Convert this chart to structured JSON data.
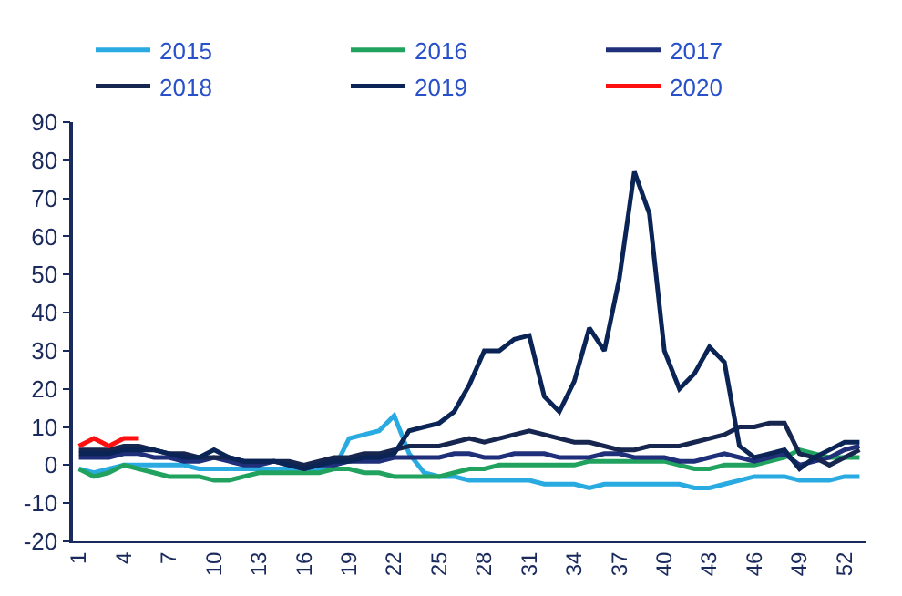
{
  "chart_data": {
    "type": "line",
    "x": [
      1,
      2,
      3,
      4,
      5,
      6,
      7,
      8,
      9,
      10,
      11,
      12,
      13,
      14,
      15,
      16,
      17,
      18,
      19,
      20,
      21,
      22,
      23,
      24,
      25,
      26,
      27,
      28,
      29,
      30,
      31,
      32,
      33,
      34,
      35,
      36,
      37,
      38,
      39,
      40,
      41,
      42,
      43,
      44,
      45,
      46,
      47,
      48,
      49,
      50,
      51,
      52,
      53
    ],
    "series": [
      {
        "name": "2015",
        "color": "#29abe2",
        "values": [
          -1,
          -2,
          -1,
          0,
          0,
          0,
          0,
          0,
          -1,
          -1,
          -1,
          -1,
          -1,
          -1,
          -1,
          -1,
          -1,
          -1,
          7,
          8,
          9,
          13,
          3,
          -2,
          -3,
          -3,
          -4,
          -4,
          -4,
          -4,
          -4,
          -5,
          -5,
          -5,
          -6,
          -5,
          -5,
          -5,
          -5,
          -5,
          -5,
          -6,
          -6,
          -5,
          -4,
          -3,
          -3,
          -3,
          -4,
          -4,
          -4,
          -3,
          -3
        ]
      },
      {
        "name": "2016",
        "color": "#21a35f",
        "values": [
          -1,
          -3,
          -2,
          0,
          -1,
          -2,
          -3,
          -3,
          -3,
          -4,
          -4,
          -3,
          -2,
          -2,
          -2,
          -2,
          -2,
          -1,
          -1,
          -2,
          -2,
          -3,
          -3,
          -3,
          -3,
          -2,
          -1,
          -1,
          0,
          0,
          0,
          0,
          0,
          0,
          1,
          1,
          1,
          1,
          1,
          1,
          0,
          -1,
          -1,
          0,
          0,
          0,
          1,
          2,
          4,
          3,
          2,
          2,
          2
        ]
      },
      {
        "name": "2017",
        "color": "#1f2f7a",
        "values": [
          2,
          2,
          2,
          3,
          3,
          2,
          2,
          1,
          1,
          2,
          1,
          0,
          0,
          1,
          0,
          -1,
          0,
          0,
          1,
          1,
          1,
          2,
          2,
          2,
          2,
          3,
          3,
          2,
          2,
          3,
          3,
          3,
          2,
          2,
          2,
          3,
          3,
          2,
          2,
          2,
          1,
          1,
          2,
          3,
          2,
          1,
          2,
          3,
          0,
          1,
          2,
          4,
          5
        ]
      },
      {
        "name": "2018",
        "color": "#17264f",
        "values": [
          4,
          4,
          4,
          5,
          5,
          4,
          3,
          3,
          2,
          2,
          2,
          1,
          1,
          1,
          1,
          0,
          1,
          2,
          2,
          3,
          3,
          4,
          5,
          5,
          5,
          6,
          7,
          6,
          7,
          8,
          9,
          8,
          7,
          6,
          6,
          5,
          4,
          4,
          5,
          5,
          5,
          6,
          7,
          8,
          10,
          10,
          11,
          11,
          3,
          2,
          0,
          2,
          4
        ]
      },
      {
        "name": "2019",
        "color": "#0a2456",
        "values": [
          3,
          3,
          3,
          4,
          4,
          4,
          3,
          2,
          2,
          4,
          2,
          1,
          1,
          1,
          0,
          -1,
          0,
          1,
          1,
          2,
          2,
          3,
          9,
          10,
          11,
          14,
          21,
          30,
          30,
          33,
          34,
          18,
          14,
          22,
          36,
          30,
          49,
          77,
          66,
          30,
          20,
          24,
          31,
          27,
          5,
          2,
          3,
          4,
          -1,
          2,
          4,
          6,
          6
        ]
      },
      {
        "name": "2020",
        "color": "#ff1010",
        "x": [
          1,
          2,
          3,
          4,
          5
        ],
        "values": [
          5,
          7,
          5,
          7,
          7
        ]
      }
    ],
    "xlim": [
      0.6,
      53.4
    ],
    "xticks": [
      1,
      4,
      7,
      10,
      13,
      16,
      19,
      22,
      25,
      28,
      31,
      34,
      37,
      40,
      43,
      46,
      49,
      52
    ],
    "ylim": [
      -20,
      90
    ],
    "yticks": [
      -20,
      -10,
      0,
      10,
      20,
      30,
      40,
      50,
      60,
      70,
      80,
      90
    ],
    "legend": "top",
    "marker": "none",
    "line_style": "solid"
  }
}
